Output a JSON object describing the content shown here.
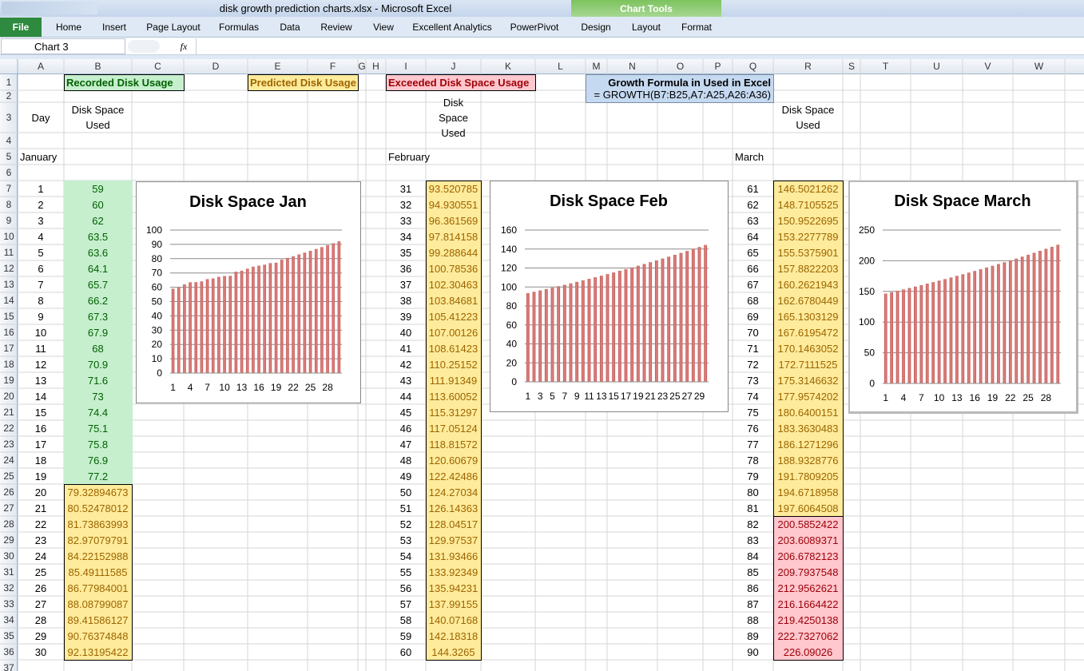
{
  "window": {
    "title": "disk growth prediction charts.xlsx - Microsoft Excel",
    "context_tab": "Chart Tools"
  },
  "ribbon": {
    "file_tab": "File",
    "tabs": [
      "Home",
      "Insert",
      "Page Layout",
      "Formulas",
      "Data",
      "Review",
      "View",
      "Excellent Analytics",
      "PowerPivot",
      "Design",
      "Layout",
      "Format"
    ]
  },
  "formula_bar": {
    "name_box": "Chart 3",
    "fx": "fx"
  },
  "sheet": {
    "columns": [
      "A",
      "B",
      "C",
      "D",
      "E",
      "F",
      "G",
      "H",
      "I",
      "J",
      "K",
      "L",
      "M",
      "N",
      "O",
      "P",
      "Q",
      "R",
      "S",
      "T",
      "U",
      "V",
      "W"
    ],
    "rows": [
      1,
      2,
      3,
      4,
      5,
      6,
      7,
      8,
      9,
      10,
      11,
      12,
      13,
      14,
      15,
      16,
      17,
      18,
      19,
      20,
      21,
      22,
      23,
      24,
      25,
      26,
      27,
      28,
      29,
      30,
      31,
      32,
      33,
      34,
      35,
      36,
      37
    ],
    "legend": {
      "recorded": "Recorded Disk Usage",
      "predicted": "Predicted Disk Usage",
      "exceeded": "Exceeded Disk Space Usage"
    },
    "formula_note": {
      "title": "Growth Formula in Used in Excel",
      "formula": "= GROWTH(B7:B25,A7:A25,A26:A36)"
    },
    "column_titles": {
      "day": "Day",
      "used": "Disk Space Used"
    },
    "months": [
      "January",
      "February",
      "March"
    ],
    "blocks": [
      {
        "days": [
          1,
          2,
          3,
          4,
          5,
          6,
          7,
          8,
          9,
          10,
          11,
          12,
          13,
          14,
          15,
          16,
          17,
          18,
          19,
          20,
          21,
          22,
          23,
          24,
          25,
          26,
          27,
          28,
          29,
          30
        ],
        "values": [
          59,
          60,
          62,
          63.5,
          63.6,
          64.1,
          65.7,
          66.2,
          67.3,
          67.9,
          68,
          70.9,
          71.6,
          73,
          74.4,
          75.1,
          75.8,
          76.9,
          77.2,
          79.32894673,
          80.52478012,
          81.73863993,
          82.97079791,
          84.22152988,
          85.49111585,
          86.77984001,
          88.08799087,
          89.41586127,
          90.76374848,
          92.13195422
        ]
      },
      {
        "days": [
          31,
          32,
          33,
          34,
          35,
          36,
          37,
          38,
          39,
          40,
          41,
          42,
          43,
          44,
          45,
          46,
          47,
          48,
          49,
          50,
          51,
          52,
          53,
          54,
          55,
          56,
          57,
          58,
          59,
          60
        ],
        "values": [
          93.520785,
          94.930551,
          96.361569,
          97.814158,
          99.288644,
          100.78536,
          102.30463,
          103.84681,
          105.41223,
          107.00126,
          108.61423,
          110.25152,
          111.91349,
          113.60052,
          115.31297,
          117.05124,
          118.81572,
          120.60679,
          122.42486,
          124.27034,
          126.14363,
          128.04517,
          129.97537,
          131.93466,
          133.92349,
          135.94231,
          137.99155,
          140.07168,
          142.18318,
          144.3265
        ]
      },
      {
        "days": [
          61,
          62,
          63,
          64,
          65,
          66,
          67,
          68,
          69,
          70,
          71,
          72,
          73,
          74,
          75,
          76,
          77,
          78,
          79,
          80,
          81,
          82,
          83,
          84,
          85,
          86,
          87,
          88,
          89,
          90
        ],
        "values": [
          146.5021262,
          148.7105525,
          150.9522695,
          153.2277789,
          155.5375901,
          157.8822203,
          160.2621943,
          162.6780449,
          165.1303129,
          167.6195472,
          170.1463052,
          172.7111525,
          175.3146632,
          177.9574202,
          180.6400151,
          183.3630483,
          186.1271296,
          188.9328776,
          191.7809205,
          194.6718958,
          197.6064508,
          200.5852422,
          203.6089371,
          206.6782123,
          209.7937548,
          212.9562621,
          216.1664422,
          219.4250138,
          222.7327062,
          226.09026
        ]
      }
    ]
  },
  "charts": [
    {
      "type": "bar",
      "title": "Disk Space Jan",
      "color": "#c0504d",
      "ylim": [
        0,
        100
      ],
      "yticks": [
        0,
        10,
        20,
        30,
        40,
        50,
        60,
        70,
        80,
        90,
        100
      ],
      "categories": [
        1,
        null,
        null,
        4,
        null,
        null,
        7,
        null,
        null,
        10,
        null,
        null,
        13,
        null,
        null,
        16,
        null,
        null,
        19,
        null,
        null,
        22,
        null,
        null,
        25,
        null,
        null,
        28,
        null,
        null
      ]
    },
    {
      "type": "bar",
      "title": "Disk Space Feb",
      "color": "#c0504d",
      "ylim": [
        0,
        160
      ],
      "yticks": [
        0,
        20,
        40,
        60,
        80,
        100,
        120,
        140,
        160
      ],
      "categories": [
        1,
        null,
        3,
        null,
        5,
        null,
        7,
        null,
        9,
        null,
        11,
        null,
        13,
        null,
        15,
        null,
        17,
        null,
        19,
        null,
        21,
        null,
        23,
        null,
        25,
        null,
        27,
        null,
        29,
        null
      ]
    },
    {
      "type": "bar",
      "title": "Disk Space March",
      "color": "#c0504d",
      "ylim": [
        0,
        250
      ],
      "yticks": [
        0,
        50,
        100,
        150,
        200,
        250
      ],
      "categories": [
        1,
        null,
        null,
        4,
        null,
        null,
        7,
        null,
        null,
        10,
        null,
        null,
        13,
        null,
        null,
        16,
        null,
        null,
        19,
        null,
        null,
        22,
        null,
        null,
        25,
        null,
        null,
        28,
        null,
        null
      ]
    }
  ]
}
